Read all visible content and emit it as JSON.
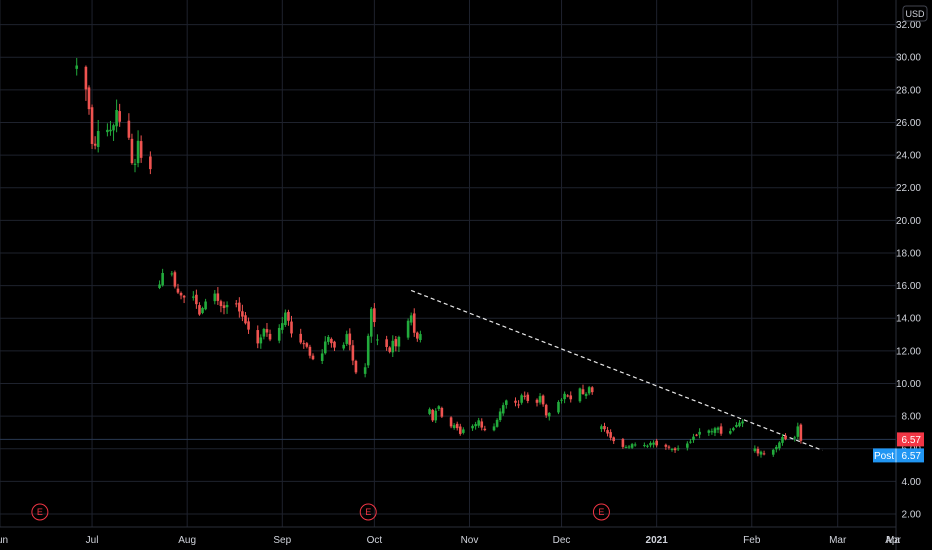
{
  "chart_data": {
    "type": "candlestick",
    "currency": "USD",
    "ylim": [
      1.2,
      33.2
    ],
    "y_ticks": [
      2,
      4,
      6,
      8,
      10,
      12,
      14,
      16,
      18,
      20,
      22,
      24,
      26,
      28,
      30,
      32
    ],
    "y_tick_labels": [
      "2.00",
      "4.00",
      "6.00",
      "8.00",
      "10.00",
      "12.00",
      "14.00",
      "16.00",
      "18.00",
      "20.00",
      "22.00",
      "24.00",
      "26.00",
      "28.00",
      "30.00",
      "32.00"
    ],
    "x_start": "2020-06-01",
    "x_end": "2021-03-20",
    "x_ticks": [
      {
        "date": "2020-06-01",
        "label": "Jun"
      },
      {
        "date": "2020-07-01",
        "label": "Jul"
      },
      {
        "date": "2020-08-01",
        "label": "Aug"
      },
      {
        "date": "2020-09-01",
        "label": "Sep"
      },
      {
        "date": "2020-10-01",
        "label": "Oct"
      },
      {
        "date": "2020-11-01",
        "label": "Nov"
      },
      {
        "date": "2020-12-01",
        "label": "Dec"
      },
      {
        "date": "2021-01-01",
        "label": "2021",
        "bold": true
      },
      {
        "date": "2021-02-01",
        "label": "Feb"
      },
      {
        "date": "2021-03-01",
        "label": "Mar"
      },
      {
        "date": "2021-04-01",
        "label": "Apr"
      },
      {
        "date": "2021-05-01",
        "label": "Ma"
      }
    ],
    "colors": {
      "up": "#26a69a",
      "up_bright": "#22ab3c",
      "down": "#ef5350",
      "grid": "#1e222d",
      "text": "#d1d4dc",
      "last_price": "#f23645",
      "post": "#2196f3",
      "earnings": "#f23645"
    },
    "last_price": {
      "value": 6.57,
      "label": "6.57"
    },
    "post_price": {
      "value": 6.57,
      "label": "6.57",
      "tag": "Post"
    },
    "earnings_markers": [
      {
        "date": "2020-06-14",
        "label": "E"
      },
      {
        "date": "2020-09-29",
        "label": "E"
      },
      {
        "date": "2020-12-14",
        "label": "E"
      }
    ],
    "trendline": {
      "start": {
        "date": "2020-10-13",
        "value": 15.7
      },
      "end": {
        "date": "2021-02-24",
        "value": 5.9
      }
    },
    "segments": [
      {
        "start": "2020-06-26",
        "end": "2020-07-20",
        "vals": [
          29.5,
          28.0,
          27.5,
          25.0,
          24.5,
          25.0,
          26.5,
          25.0,
          25.5,
          26.0,
          27.5,
          25.5,
          24.5,
          23.0,
          24.0,
          25.0,
          24.0,
          23.0
        ]
      },
      {
        "start": "2020-07-23",
        "end": "2020-10-01",
        "vals": [
          16.2,
          17.0,
          16.5,
          16.0,
          15.5,
          15.0,
          15.2,
          14.8,
          14.0,
          14.5,
          15.0,
          15.6,
          15.2,
          14.6,
          14.8,
          15.2,
          14.4,
          14.0,
          13.8,
          13.0,
          12.6,
          13.0,
          13.5,
          12.8,
          13.0,
          13.6,
          14.2,
          13.8,
          13.0,
          12.6,
          12.2,
          12.0,
          11.6,
          11.8,
          12.4,
          12.8,
          12.4,
          12.0,
          12.6,
          13.0,
          12.2,
          11.0,
          10.6,
          12.5,
          14.5,
          13.6
        ]
      },
      {
        "start": "2020-10-02",
        "end": "2020-10-16",
        "vals": [
          12.8,
          12.0,
          12.5,
          12.0,
          12.6,
          12.2,
          12.0,
          12.8,
          13.0,
          15.3,
          14.0,
          13.2,
          12.6,
          12.8,
          13.2
        ]
      },
      {
        "start": "2020-10-19",
        "end": "2020-12-11",
        "vals": [
          8.5,
          7.5,
          9.0,
          8.0,
          7.2,
          7.6,
          7.0,
          7.2,
          7.5,
          7.8,
          7.4,
          7.2,
          7.6,
          8.2,
          8.6,
          9.0,
          8.8,
          9.2,
          9.0,
          8.6,
          9.2,
          8.4,
          8.0,
          8.8,
          9.2,
          9.4,
          9.0,
          9.6,
          9.2,
          9.8,
          9.4
        ]
      },
      {
        "start": "2020-12-14",
        "end": "2021-01-29",
        "vals": [
          7.5,
          7.0,
          6.6,
          6.2,
          6.0,
          6.2,
          6.4,
          6.2,
          6.4,
          6.2,
          6.0,
          5.9,
          6.0,
          6.3,
          6.6,
          6.9,
          7.2,
          7.1,
          7.2,
          7.0,
          7.3,
          7.4,
          7.6
        ]
      },
      {
        "start": "2021-02-02",
        "end": "2021-02-17",
        "vals": [
          6.0,
          5.7,
          5.8,
          5.6,
          5.9,
          6.1,
          6.3,
          6.6,
          6.9,
          6.5,
          6.8,
          7.4,
          6.6
        ]
      }
    ]
  }
}
